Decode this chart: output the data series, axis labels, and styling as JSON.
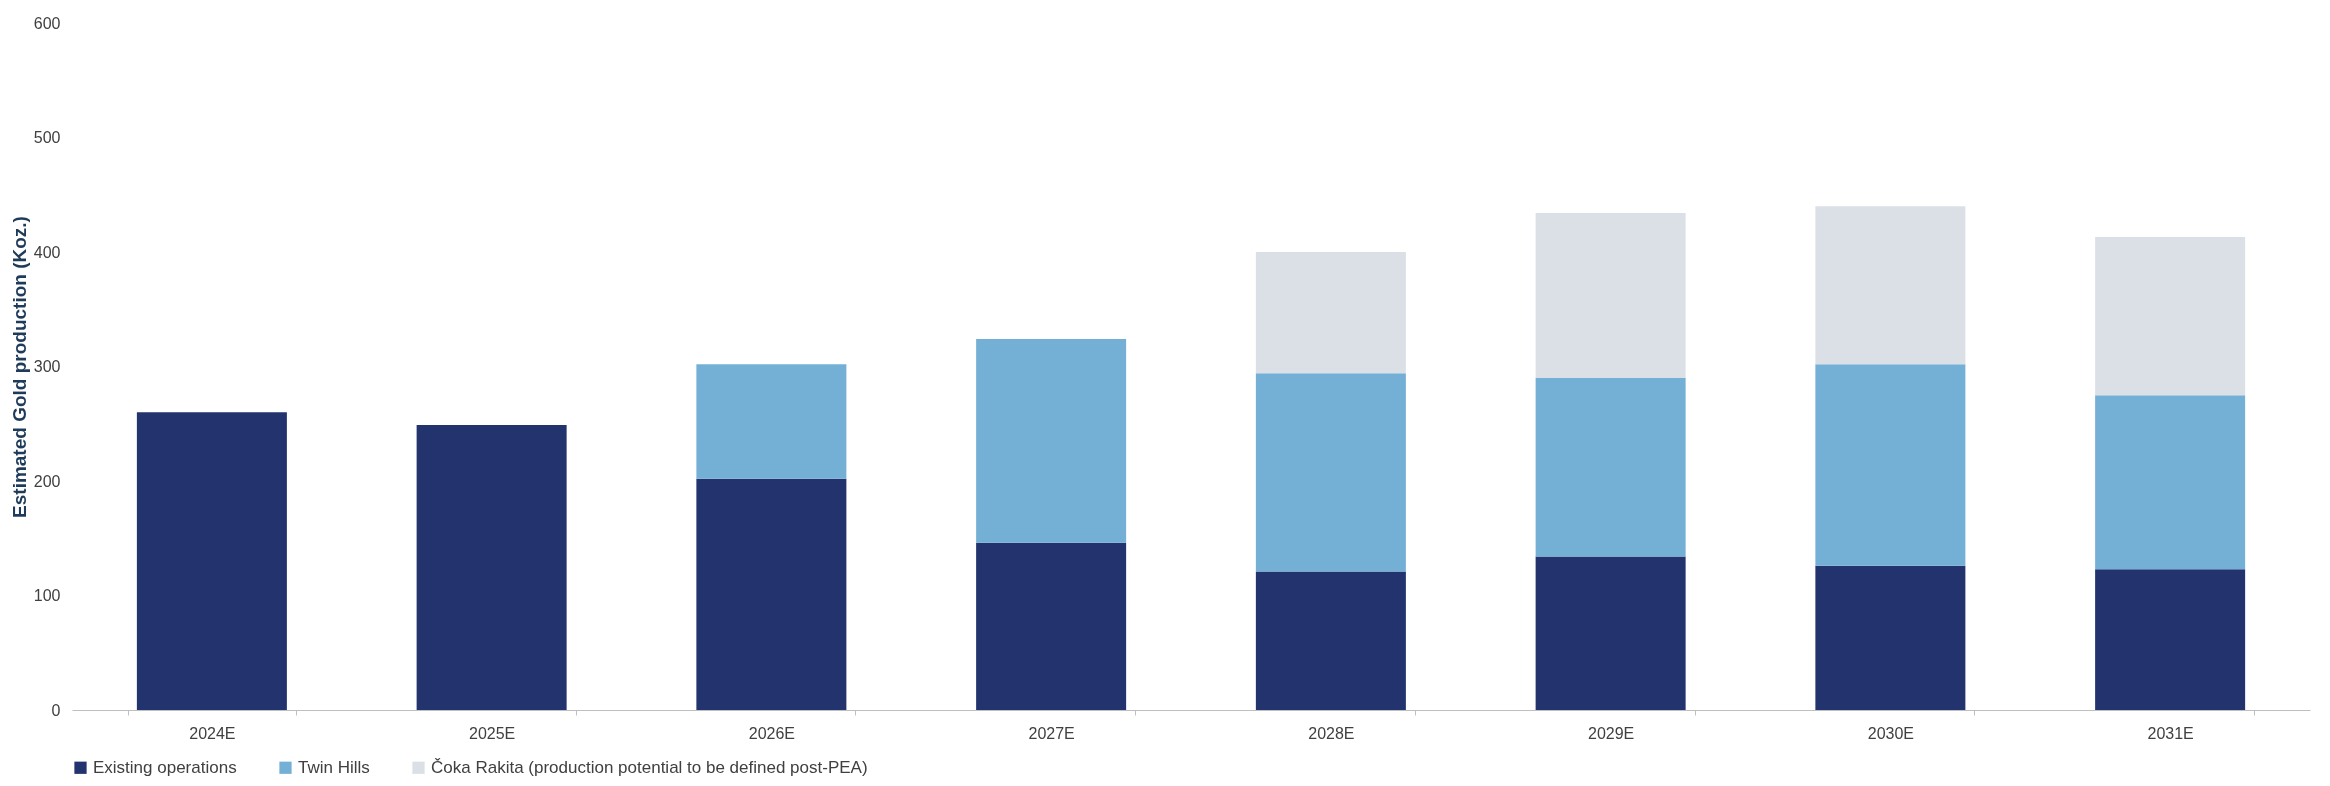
{
  "chart_data": {
    "type": "bar",
    "stacked": true,
    "ylabel": "Estimated Gold production (Koz.)",
    "categories": [
      "2024E",
      "2025E",
      "2026E",
      "2027E",
      "2028E",
      "2029E",
      "2030E",
      "2031E"
    ],
    "series": [
      {
        "name": "Existing operations",
        "color": "#22336e",
        "values": [
          260,
          249,
          202,
          146,
          121,
          134,
          126,
          123
        ]
      },
      {
        "name": "Twin Hills",
        "color": "#74b0d6",
        "values": [
          null,
          null,
          100,
          178,
          173,
          156,
          176,
          152
        ]
      },
      {
        "name": "Čoka Rakita (production potential to be defined post-PEA)",
        "color": "#dbe0e6",
        "values": [
          null,
          null,
          null,
          null,
          106,
          144,
          138,
          138
        ]
      }
    ],
    "ylim": [
      0,
      600
    ],
    "yticks": [
      0,
      100,
      200,
      300,
      400,
      500,
      600
    ],
    "grid": false,
    "legend": "bottom"
  }
}
